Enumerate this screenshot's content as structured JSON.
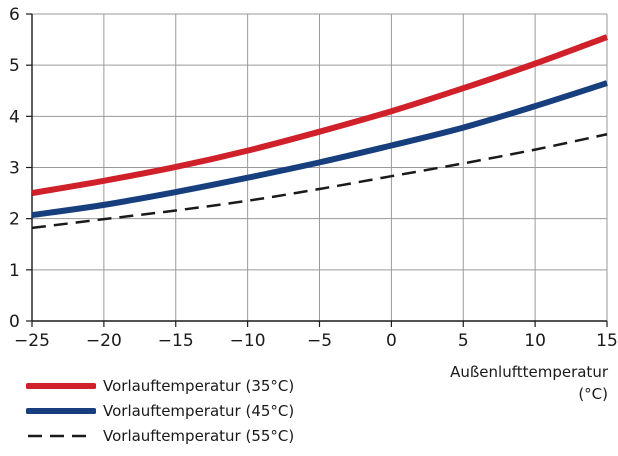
{
  "chart_data": {
    "type": "line",
    "xlabel": "Außenlufttemperatur",
    "xunit": "(°C)",
    "xlim": [
      -25,
      15
    ],
    "ylim": [
      0,
      6
    ],
    "xticks": [
      "-25",
      "-20",
      "-15",
      "-10",
      "-5",
      "0",
      "5",
      "10",
      "15"
    ],
    "yticks": [
      "0",
      "1",
      "2",
      "3",
      "4",
      "5",
      "6"
    ],
    "grid": true,
    "legend_position": "bottom-left",
    "series": [
      {
        "name": "Vorlauftemperatur (35°C)",
        "color": "#d0202a",
        "style": "solid",
        "x": [
          -25,
          -20,
          -15,
          -10,
          -5,
          0,
          5,
          10,
          15
        ],
        "y": [
          2.5,
          2.74,
          3.01,
          3.33,
          3.7,
          4.1,
          4.55,
          5.03,
          5.55
        ]
      },
      {
        "name": "Vorlauftemperatur (45°C)",
        "color": "#173f7e",
        "style": "solid",
        "x": [
          -25,
          -20,
          -15,
          -10,
          -5,
          0,
          5,
          10,
          15
        ],
        "y": [
          2.07,
          2.27,
          2.52,
          2.8,
          3.1,
          3.43,
          3.78,
          4.2,
          4.65
        ]
      },
      {
        "name": "Vorlauftemperatur (55°C)",
        "color": "#1a1a1a",
        "style": "dashed",
        "x": [
          -25,
          -20,
          -15,
          -10,
          -5,
          0,
          5,
          10,
          15
        ],
        "y": [
          1.82,
          1.99,
          2.16,
          2.35,
          2.58,
          2.83,
          3.08,
          3.35,
          3.65
        ]
      }
    ]
  }
}
